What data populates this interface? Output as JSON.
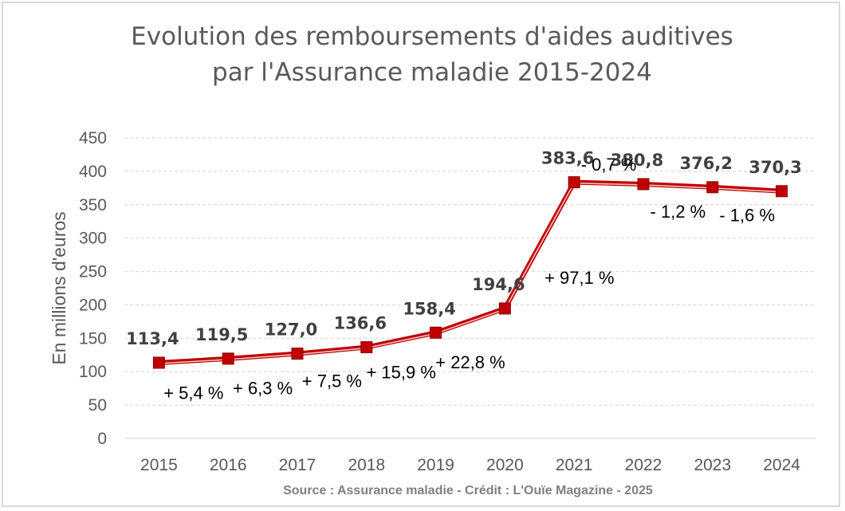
{
  "title_line1": "Evolution des remboursements d'aides auditives",
  "title_line2": "par l'Assurance maladie 2015-2024",
  "source": "Source : Assurance maladie - Crédit : L'Ouïe Magazine - 2025",
  "colors": {
    "line": "#c00000",
    "marker": "#c00000",
    "grid": "#d9d9d9",
    "text": "#595959"
  },
  "chart_data": {
    "type": "line",
    "title": "Evolution des remboursements d'aides auditives par l'Assurance maladie 2015-2024",
    "xlabel": "",
    "ylabel": "En millions d'euros",
    "ylim": [
      0,
      450
    ],
    "yticks": [
      0,
      50,
      100,
      150,
      200,
      250,
      300,
      350,
      400,
      450
    ],
    "grid": true,
    "categories": [
      "2015",
      "2016",
      "2017",
      "2018",
      "2019",
      "2020",
      "2021",
      "2022",
      "2023",
      "2024"
    ],
    "values": [
      113.4,
      119.5,
      127.0,
      136.6,
      158.4,
      194.6,
      383.6,
      380.8,
      376.2,
      370.3
    ],
    "value_labels": [
      "113,4",
      "119,5",
      "127,0",
      "136,6",
      "158,4",
      "194,6",
      "383,6",
      "380,8",
      "376,2",
      "370,3"
    ],
    "change_labels": [
      "+ 5,4 %",
      "+ 6,3 %",
      "+ 7,5 %",
      "+ 15,9 %",
      "+ 22,8 %",
      "+ 97,1 %",
      "- 0,7 %",
      "- 1,2 %",
      "- 1,6 %"
    ]
  }
}
